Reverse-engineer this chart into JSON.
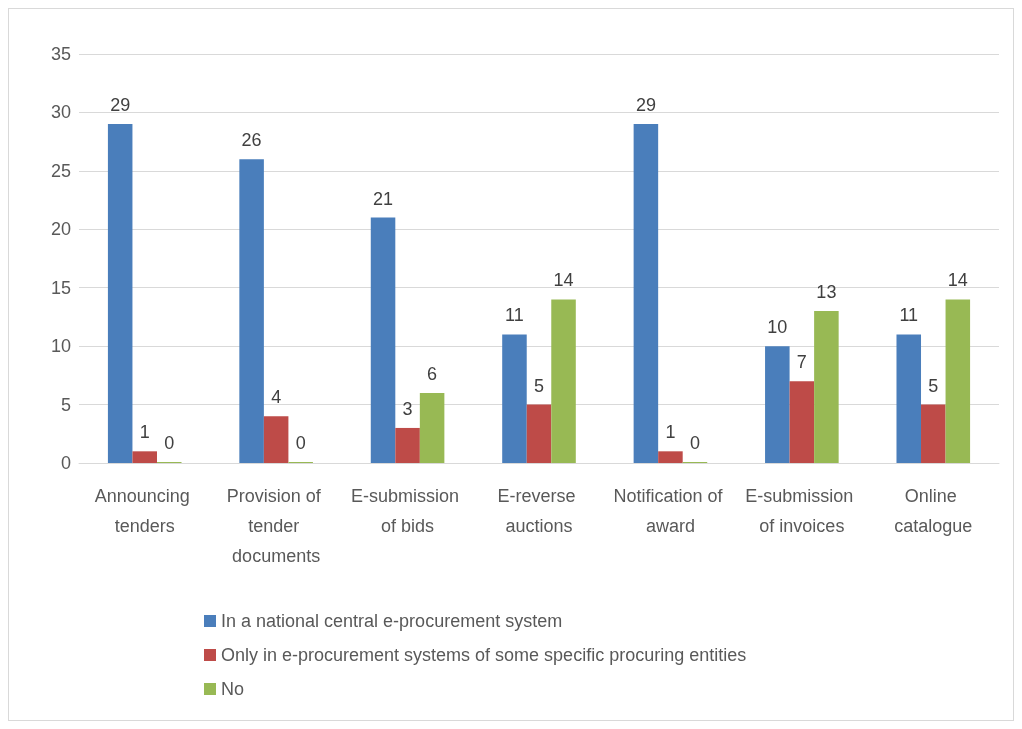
{
  "chart_data": {
    "type": "bar",
    "categories": [
      "Announcing tenders",
      "Provision of tender documents",
      "E-submission of bids",
      "E-reverse auctions",
      "Notification of award",
      "E-submission of invoices",
      "Online catalogue"
    ],
    "series": [
      {
        "name": "In a national central e-procurement system",
        "color": "#4a7ebb",
        "values": [
          29,
          26,
          21,
          11,
          29,
          10,
          11
        ]
      },
      {
        "name": "Only in e-procurement systems of some specific procuring entities",
        "color": "#be4b48",
        "values": [
          1,
          4,
          3,
          5,
          1,
          7,
          5
        ]
      },
      {
        "name": "No",
        "color": "#98b954",
        "values": [
          0,
          0,
          6,
          14,
          0,
          13,
          14
        ]
      }
    ],
    "ylim": [
      0,
      35
    ],
    "yticks": [
      0,
      5,
      10,
      15,
      20,
      25,
      30,
      35
    ],
    "grid": "y",
    "legend": "bottom",
    "data_labels": true
  }
}
